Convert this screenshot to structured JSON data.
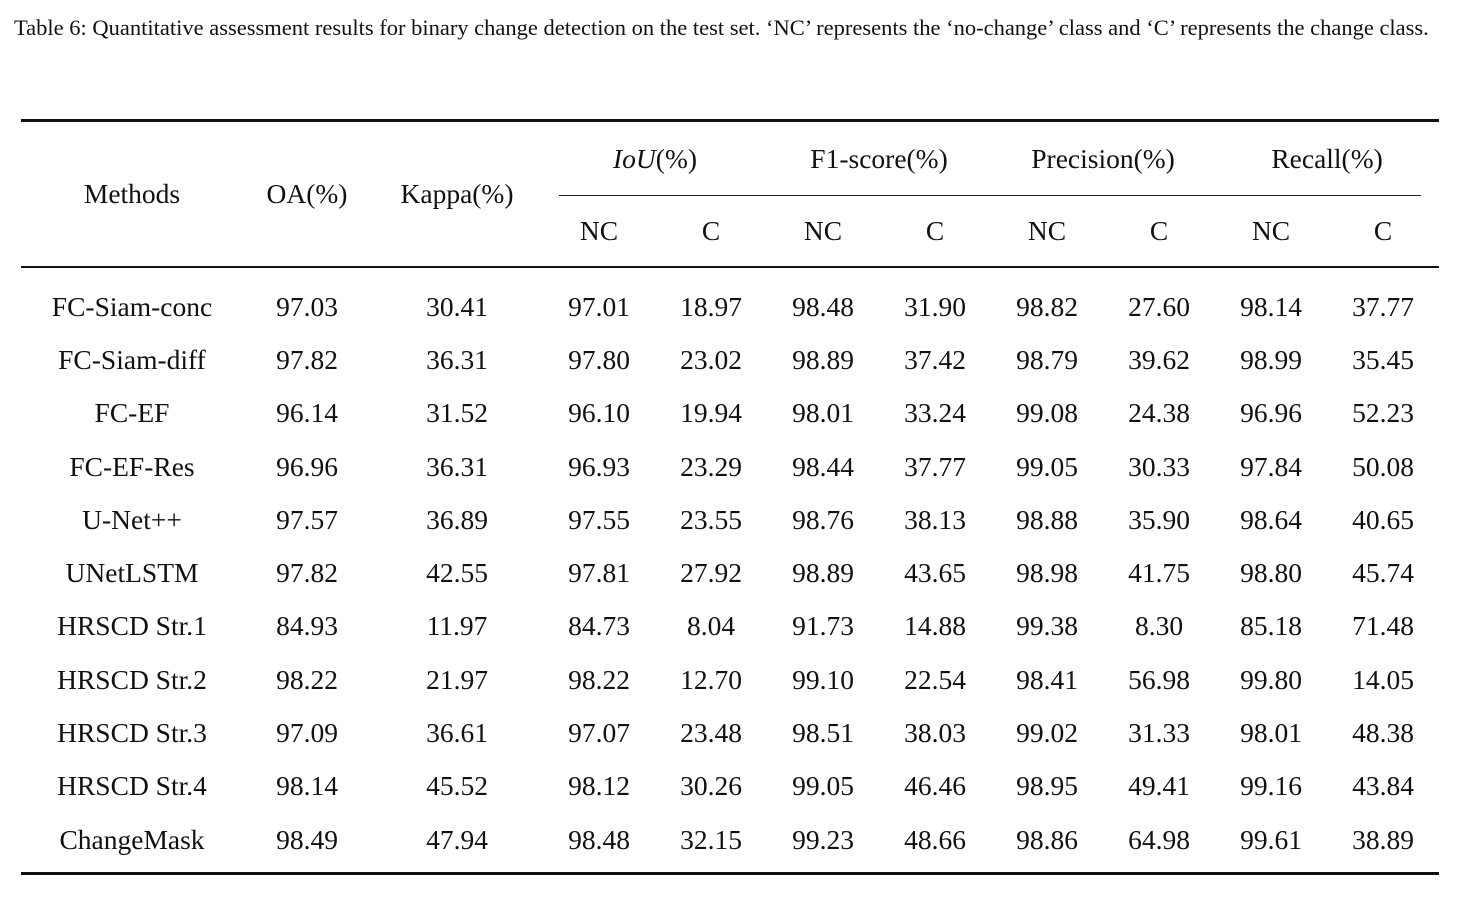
{
  "caption": "Table 6: Quantitative assessment results for binary change detection on the test set. ‘NC’ represents the ‘no-change’ class and ‘C’ represents the change class.",
  "table": {
    "headers": {
      "methods": "Methods",
      "oa": "OA(%)",
      "kappa": "Kappa(%)",
      "iou_italic": "IoU",
      "iou_unit": "(%)",
      "f1": "F1-score(%)",
      "precision": "Precision(%)",
      "recall": "Recall(%)",
      "nc": "NC",
      "c": "C"
    },
    "rows": [
      {
        "method": "FC-Siam-conc",
        "oa": "97.03",
        "kappa": "30.41",
        "iou_nc": "97.01",
        "iou_c": "18.97",
        "f1_nc": "98.48",
        "f1_c": "31.90",
        "p_nc": "98.82",
        "p_c": "27.60",
        "r_nc": "98.14",
        "r_c": "37.77"
      },
      {
        "method": "FC-Siam-diff",
        "oa": "97.82",
        "kappa": "36.31",
        "iou_nc": "97.80",
        "iou_c": "23.02",
        "f1_nc": "98.89",
        "f1_c": "37.42",
        "p_nc": "98.79",
        "p_c": "39.62",
        "r_nc": "98.99",
        "r_c": "35.45"
      },
      {
        "method": "FC-EF",
        "oa": "96.14",
        "kappa": "31.52",
        "iou_nc": "96.10",
        "iou_c": "19.94",
        "f1_nc": "98.01",
        "f1_c": "33.24",
        "p_nc": "99.08",
        "p_c": "24.38",
        "r_nc": "96.96",
        "r_c": "52.23"
      },
      {
        "method": "FC-EF-Res",
        "oa": "96.96",
        "kappa": "36.31",
        "iou_nc": "96.93",
        "iou_c": "23.29",
        "f1_nc": "98.44",
        "f1_c": "37.77",
        "p_nc": "99.05",
        "p_c": "30.33",
        "r_nc": "97.84",
        "r_c": "50.08"
      },
      {
        "method": "U-Net++",
        "oa": "97.57",
        "kappa": "36.89",
        "iou_nc": "97.55",
        "iou_c": "23.55",
        "f1_nc": "98.76",
        "f1_c": "38.13",
        "p_nc": "98.88",
        "p_c": "35.90",
        "r_nc": "98.64",
        "r_c": "40.65"
      },
      {
        "method": "UNetLSTM",
        "oa": "97.82",
        "kappa": "42.55",
        "iou_nc": "97.81",
        "iou_c": "27.92",
        "f1_nc": "98.89",
        "f1_c": "43.65",
        "p_nc": "98.98",
        "p_c": "41.75",
        "r_nc": "98.80",
        "r_c": "45.74"
      },
      {
        "method": "HRSCD Str.1",
        "oa": "84.93",
        "kappa": "11.97",
        "iou_nc": "84.73",
        "iou_c": "8.04",
        "f1_nc": "91.73",
        "f1_c": "14.88",
        "p_nc": "99.38",
        "p_c": "8.30",
        "r_nc": "85.18",
        "r_c": "71.48"
      },
      {
        "method": "HRSCD Str.2",
        "oa": "98.22",
        "kappa": "21.97",
        "iou_nc": "98.22",
        "iou_c": "12.70",
        "f1_nc": "99.10",
        "f1_c": "22.54",
        "p_nc": "98.41",
        "p_c": "56.98",
        "r_nc": "99.80",
        "r_c": "14.05"
      },
      {
        "method": "HRSCD Str.3",
        "oa": "97.09",
        "kappa": "36.61",
        "iou_nc": "97.07",
        "iou_c": "23.48",
        "f1_nc": "98.51",
        "f1_c": "38.03",
        "p_nc": "99.02",
        "p_c": "31.33",
        "r_nc": "98.01",
        "r_c": "48.38"
      },
      {
        "method": "HRSCD Str.4",
        "oa": "98.14",
        "kappa": "45.52",
        "iou_nc": "98.12",
        "iou_c": "30.26",
        "f1_nc": "99.05",
        "f1_c": "46.46",
        "p_nc": "98.95",
        "p_c": "49.41",
        "r_nc": "99.16",
        "r_c": "43.84"
      },
      {
        "method": "ChangeMask",
        "oa": "98.49",
        "kappa": "47.94",
        "iou_nc": "98.48",
        "iou_c": "32.15",
        "f1_nc": "99.23",
        "f1_c": "48.66",
        "p_nc": "98.86",
        "p_c": "64.98",
        "r_nc": "99.61",
        "r_c": "38.89"
      }
    ]
  }
}
